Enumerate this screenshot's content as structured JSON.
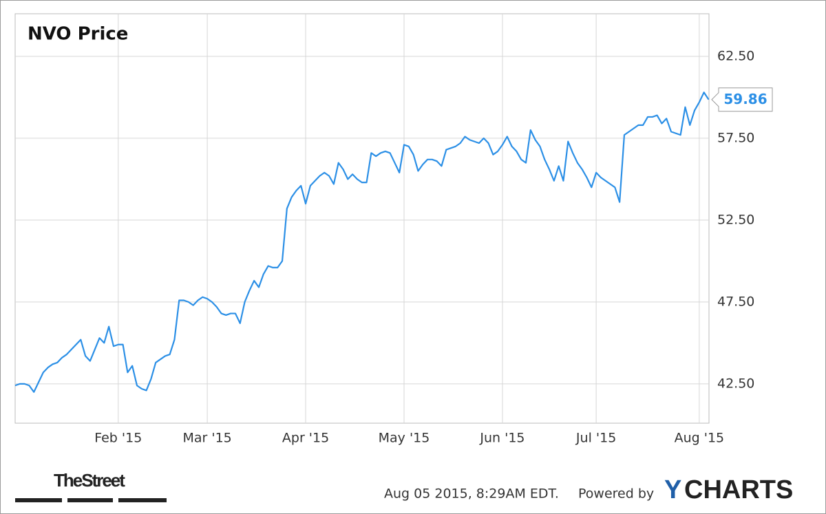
{
  "chart_data": {
    "type": "line",
    "title": "NVO Price",
    "categories": [
      null,
      null,
      null,
      null,
      null,
      null,
      null,
      null,
      null,
      null,
      null,
      null,
      null,
      null,
      null,
      null,
      null,
      null,
      null,
      null,
      null,
      null,
      "Feb '15",
      null,
      null,
      null,
      null,
      null,
      null,
      null,
      null,
      null,
      null,
      null,
      null,
      null,
      null,
      null,
      null,
      null,
      null,
      "Mar '15",
      null,
      null,
      null,
      null,
      null,
      null,
      null,
      null,
      null,
      null,
      null,
      null,
      null,
      null,
      null,
      null,
      null,
      null,
      null,
      null,
      "Apr '15",
      null,
      null,
      null,
      null,
      null,
      null,
      null,
      null,
      null,
      null,
      null,
      null,
      null,
      null,
      null,
      null,
      null,
      null,
      null,
      null,
      "May '15",
      null,
      null,
      null,
      null,
      null,
      null,
      null,
      null,
      null,
      null,
      null,
      null,
      null,
      null,
      null,
      null,
      null,
      null,
      null,
      null,
      "Jun '15",
      null,
      null,
      null,
      null,
      null,
      null,
      null,
      null,
      null,
      null,
      null,
      null,
      null,
      null,
      null,
      null,
      null,
      null,
      null,
      "Jul '15",
      null,
      null,
      null,
      null,
      null,
      null,
      null,
      null,
      null,
      null,
      null,
      null,
      null,
      null,
      null,
      null,
      null,
      null,
      null,
      null,
      null,
      "Aug '15",
      null,
      null
    ],
    "values": [
      42.4,
      42.5,
      42.5,
      42.4,
      42.0,
      42.6,
      43.2,
      43.5,
      43.7,
      43.8,
      44.1,
      44.3,
      44.6,
      44.9,
      45.2,
      44.2,
      43.9,
      44.6,
      45.3,
      45.0,
      46.0,
      44.8,
      44.9,
      44.9,
      43.2,
      43.6,
      42.4,
      42.2,
      42.1,
      42.8,
      43.8,
      44.0,
      44.2,
      44.3,
      45.2,
      47.6,
      47.6,
      47.5,
      47.3,
      47.6,
      47.8,
      47.7,
      47.5,
      47.2,
      46.8,
      46.7,
      46.8,
      46.8,
      46.2,
      47.5,
      48.2,
      48.8,
      48.4,
      49.2,
      49.7,
      49.6,
      49.6,
      50.0,
      53.2,
      53.9,
      54.3,
      54.6,
      53.5,
      54.6,
      54.9,
      55.2,
      55.4,
      55.2,
      54.7,
      56.0,
      55.6,
      55.0,
      55.3,
      55.0,
      54.8,
      54.8,
      56.6,
      56.4,
      56.6,
      56.7,
      56.6,
      56.0,
      55.4,
      57.1,
      57.0,
      56.5,
      55.5,
      55.9,
      56.2,
      56.2,
      56.1,
      55.8,
      56.8,
      56.9,
      57.0,
      57.2,
      57.6,
      57.4,
      57.3,
      57.2,
      57.5,
      57.2,
      56.5,
      56.7,
      57.1,
      57.6,
      57.0,
      56.7,
      56.2,
      56.0,
      58.0,
      57.4,
      57.0,
      56.2,
      55.6,
      54.9,
      55.8,
      54.9,
      57.3,
      56.6,
      56.0,
      55.6,
      55.1,
      54.5,
      55.4,
      55.1,
      54.9,
      54.7,
      54.5,
      53.6,
      57.7,
      57.9,
      58.1,
      58.3,
      58.3,
      58.8,
      58.8,
      58.9,
      58.4,
      58.7,
      57.9,
      57.8,
      57.7,
      59.4,
      58.3,
      59.2,
      59.7,
      60.3,
      59.86
    ],
    "color": "#2b8fe6",
    "ylim": [
      40.1,
      65.1
    ],
    "yticks": [
      {
        "value": 42.5,
        "label": "42.50"
      },
      {
        "value": 47.5,
        "label": "47.50"
      },
      {
        "value": 52.5,
        "label": "52.50"
      },
      {
        "value": 57.5,
        "label": "57.50"
      },
      {
        "value": 62.5,
        "label": "62.50"
      }
    ],
    "grid": true
  },
  "footer": {
    "source": "TheStreet",
    "timestamp": "Aug 05 2015, 8:29AM EDT.",
    "powered": "Powered by",
    "brand_first": "Y",
    "brand_rest": "CHARTS"
  }
}
